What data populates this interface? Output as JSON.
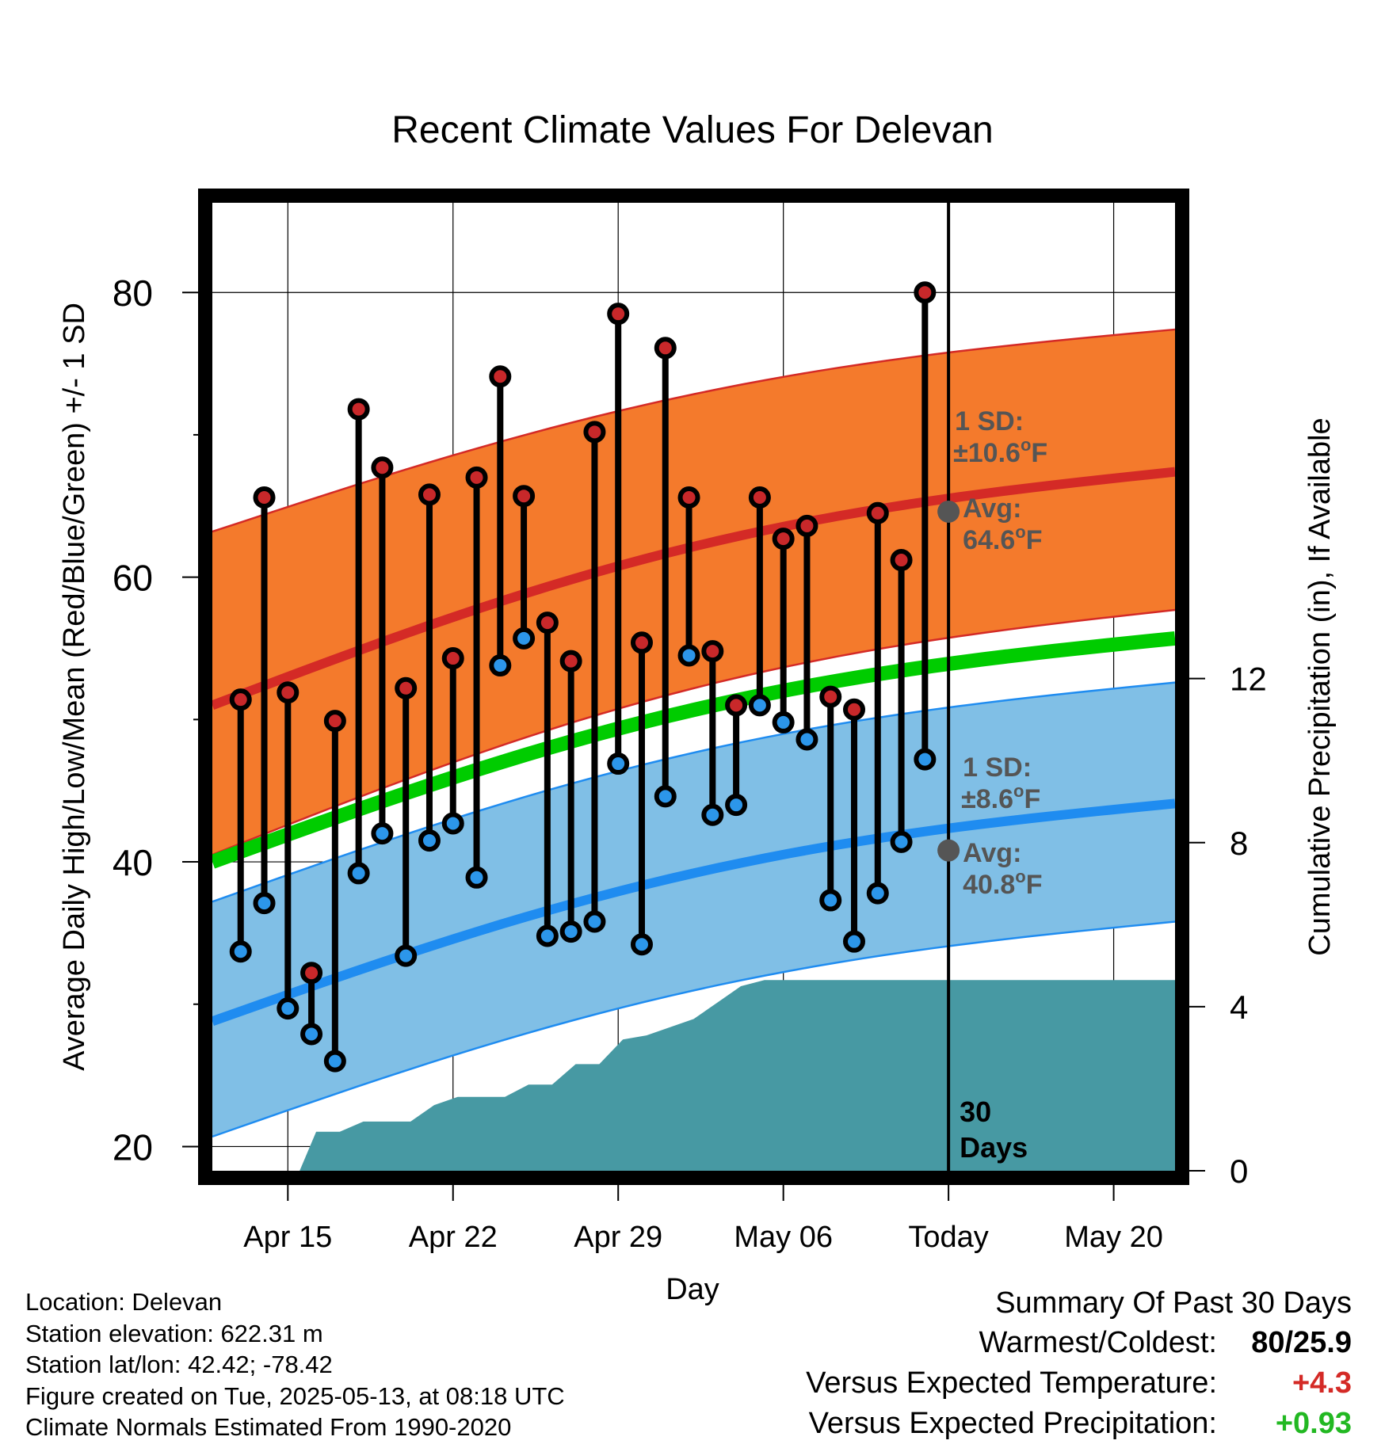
{
  "chart_data": {
    "type": "line",
    "title": "Recent Climate Values For Delevan",
    "xlabel": "Day",
    "ylabel": "Average Daily High/Low/Mean (Red/Blue/Green) +/- 1 SD",
    "y2label": "Cumulative Precipitation (in), If Available",
    "x_tick_labels": [
      "Apr 15",
      "Apr 22",
      "Apr 29",
      "May 06",
      "Today",
      "May 20"
    ],
    "x_tick_days": [
      0,
      7,
      14,
      21,
      28,
      35
    ],
    "xlim_days": [
      -3.2,
      37.6
    ],
    "ylim": [
      18.3,
      86.3
    ],
    "y_ticks": [
      20,
      40,
      60,
      80
    ],
    "y_minor_ticks": [
      30,
      50,
      70
    ],
    "y2lim": [
      0,
      23.6
    ],
    "y2_ticks": [
      0,
      4,
      8,
      12
    ],
    "today_day": 28,
    "today_label": "30 Days",
    "observed": {
      "days": [
        -2,
        -1,
        0,
        1,
        2,
        3,
        4,
        5,
        6,
        7,
        8,
        9,
        10,
        11,
        12,
        13,
        14,
        15,
        16,
        17,
        18,
        19,
        20,
        21,
        22,
        23,
        24,
        25,
        26,
        27
      ],
      "highs": [
        51.4,
        65.6,
        51.9,
        32.2,
        49.9,
        71.8,
        67.7,
        52.2,
        65.8,
        54.3,
        67,
        74.1,
        65.7,
        56.8,
        54.1,
        70.2,
        78.5,
        55.4,
        76.1,
        65.6,
        54.8,
        51,
        65.6,
        62.7,
        63.6,
        51.6,
        50.7,
        64.5,
        61.2,
        80
      ],
      "lows": [
        33.7,
        37.1,
        29.7,
        27.9,
        26,
        39.2,
        42,
        33.4,
        41.5,
        42.7,
        38.9,
        53.8,
        55.7,
        34.8,
        35.1,
        35.8,
        46.9,
        34.2,
        44.6,
        54.5,
        43.3,
        44,
        51,
        49.8,
        48.6,
        37.3,
        34.4,
        37.8,
        41.4,
        47.2
      ]
    },
    "normals": {
      "days": [
        -3.2,
        37.6
      ],
      "high_avg": [
        51,
        67.4
      ],
      "high_sd_upper": [
        63.2,
        77.4
      ],
      "high_sd_lower": [
        40.5,
        57.7
      ],
      "mean_avg": [
        40,
        55.7
      ],
      "low_avg": [
        28.8,
        44.1
      ],
      "low_sd_upper": [
        37.2,
        52.6
      ],
      "low_sd_lower": [
        20.7,
        35.8
      ]
    },
    "precipitation": {
      "days": [
        -3.2,
        0.5,
        1.2,
        2.2,
        3.2,
        4.2,
        5.2,
        6.2,
        7.2,
        8.2,
        9.2,
        10.2,
        11.2,
        12.2,
        13.2,
        14.2,
        15.2,
        16.2,
        17.2,
        18.2,
        19.2,
        20.2,
        21.2,
        27.8,
        37.6
      ],
      "values": [
        0,
        0,
        0.95,
        0.95,
        1.2,
        1.2,
        1.2,
        1.6,
        1.8,
        1.8,
        1.8,
        2.1,
        2.1,
        2.6,
        2.6,
        3.2,
        3.3,
        3.5,
        3.7,
        4.1,
        4.5,
        4.65,
        4.65,
        4.65,
        4.65
      ]
    },
    "annotations": {
      "high_sd_label_1": "1 SD:",
      "high_sd_label_2": "±10.6",
      "high_avg_label_1": "Avg:",
      "high_avg_label_2": "64.6",
      "high_avg_value": 64.6,
      "low_sd_label_1": "1 SD:",
      "low_sd_label_2": "±8.6",
      "low_avg_label_1": "Avg:",
      "low_avg_label_2": "40.8",
      "low_avg_value": 40.8,
      "degree_suffix": "F",
      "degree_sup": "o"
    },
    "colors": {
      "high_band": "#f47a2c",
      "high_band_edge": "#d42a26",
      "high_line": "#d42a26",
      "low_band": "#80bfe6",
      "low_band_edge": "#1f8cf0",
      "low_line": "#1f8cf0",
      "mean_line": "#00cc00",
      "precip": "#4799a3",
      "high_marker": "#c8282a",
      "low_marker": "#2c96ea",
      "annotation": "#555555",
      "avg_dot": "#555555"
    }
  },
  "station": {
    "location": "Location: Delevan",
    "elevation": "Station elevation: 622.31 m",
    "latlon": "Station lat/lon: 42.42; -78.42",
    "created": "Figure created on Tue, 2025-05-13, at 08:18 UTC",
    "normals": "Climate Normals Estimated From 1990-2020"
  },
  "summary": {
    "heading": "Summary Of Past 30 Days",
    "warmest_label": "Warmest/Coldest:",
    "warmest_value": "80/25.9",
    "temp_label": "Versus Expected Temperature:",
    "temp_value": "+4.3",
    "temp_color": "#d42a26",
    "precip_label": "Versus Expected Precipitation:",
    "precip_value": "+0.93",
    "precip_color": "#22b822"
  }
}
